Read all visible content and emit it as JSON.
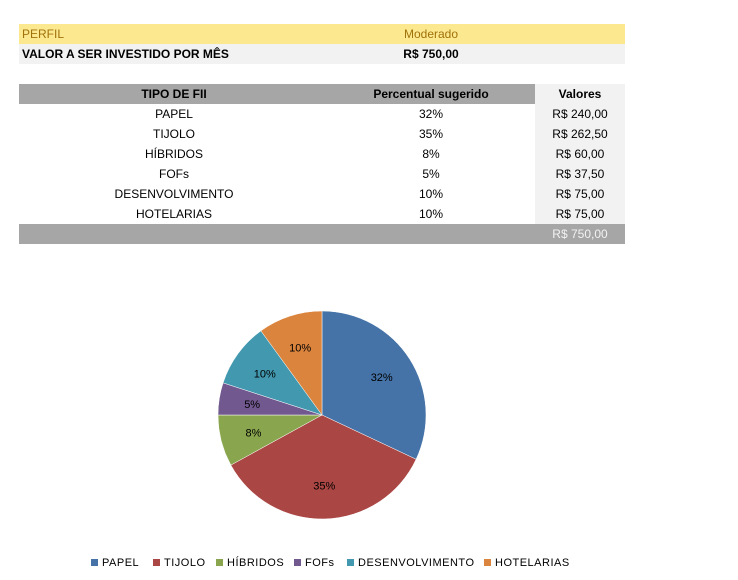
{
  "perfil": {
    "label": "PERFIL",
    "value": "Moderado"
  },
  "monthly": {
    "label": "VALOR A SER INVESTIDO POR MÊS",
    "value": "R$ 750,00"
  },
  "table": {
    "headers": [
      "TIPO DE FII",
      "Percentual sugerido",
      "Valores"
    ],
    "rows": [
      {
        "tipo": "PAPEL",
        "percentual": "32%",
        "valor": "R$ 240,00"
      },
      {
        "tipo": "TIJOLO",
        "percentual": "35%",
        "valor": "R$ 262,50"
      },
      {
        "tipo": "HÍBRIDOS",
        "percentual": "8%",
        "valor": "R$ 60,00"
      },
      {
        "tipo": "FOFs",
        "percentual": "5%",
        "valor": "R$ 37,50"
      },
      {
        "tipo": "DESENVOLVIMENTO",
        "percentual": "10%",
        "valor": "R$ 75,00"
      },
      {
        "tipo": "HOTELARIAS",
        "percentual": "10%",
        "valor": "R$ 75,00"
      }
    ],
    "total": "R$ 750,00"
  },
  "chart_data": {
    "type": "pie",
    "categories": [
      "PAPEL",
      "TIJOLO",
      "HÍBRIDOS",
      "FOFs",
      "DESENVOLVIMENTO",
      "HOTELARIAS"
    ],
    "values": [
      32,
      35,
      8,
      5,
      10,
      10
    ],
    "data_labels": [
      "32%",
      "35%",
      "8%",
      "5%",
      "10%",
      "10%"
    ],
    "colors": [
      "#4572a7",
      "#aa4643",
      "#89a54e",
      "#71588f",
      "#4198af",
      "#db843d"
    ],
    "legend": "bottom"
  }
}
